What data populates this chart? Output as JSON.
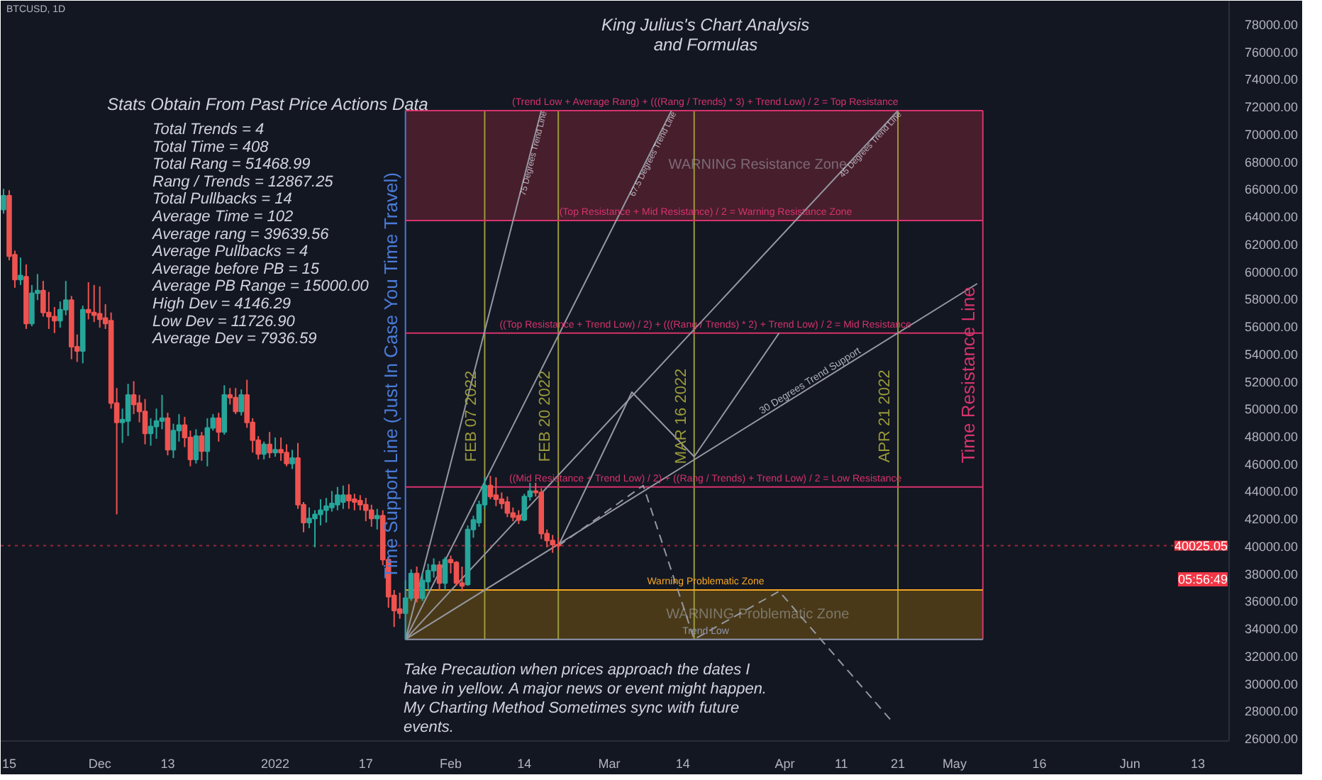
{
  "chart_data": {
    "type": "candlestick",
    "title": "King Julius's Chart Analysis\nand Formulas",
    "x": [
      "2021-11-14",
      "2021-11-15",
      "2021-11-16",
      "2021-11-17",
      "2021-11-18",
      "2021-11-19",
      "2021-11-20",
      "2021-11-21",
      "2021-11-22",
      "2021-11-23",
      "2021-11-24",
      "2021-11-25",
      "2021-11-26",
      "2021-11-27",
      "2021-11-28",
      "2021-11-29",
      "2021-11-30",
      "2021-12-01",
      "2021-12-02",
      "2021-12-03",
      "2021-12-04",
      "2021-12-05",
      "2021-12-06",
      "2021-12-07",
      "2021-12-08",
      "2021-12-09",
      "2021-12-10",
      "2021-12-11",
      "2021-12-12",
      "2021-12-13",
      "2021-12-14",
      "2021-12-15",
      "2021-12-16",
      "2021-12-17",
      "2021-12-18",
      "2021-12-19",
      "2021-12-20",
      "2021-12-21",
      "2021-12-22",
      "2021-12-23",
      "2021-12-24",
      "2021-12-25",
      "2021-12-26",
      "2021-12-27",
      "2021-12-28",
      "2021-12-29",
      "2021-12-30",
      "2021-12-31",
      "2022-01-01",
      "2022-01-02",
      "2022-01-03",
      "2022-01-04",
      "2022-01-05",
      "2022-01-06",
      "2022-01-07",
      "2022-01-08",
      "2022-01-09",
      "2022-01-10",
      "2022-01-11",
      "2022-01-12",
      "2022-01-13",
      "2022-01-14",
      "2022-01-15",
      "2022-01-16",
      "2022-01-17",
      "2022-01-18",
      "2022-01-19",
      "2022-01-20",
      "2022-01-21",
      "2022-01-22",
      "2022-01-23",
      "2022-01-24",
      "2022-01-25",
      "2022-01-26",
      "2022-01-27",
      "2022-01-28",
      "2022-01-29",
      "2022-01-30",
      "2022-01-31",
      "2022-02-01",
      "2022-02-02",
      "2022-02-03",
      "2022-02-04",
      "2022-02-05",
      "2022-02-06",
      "2022-02-07",
      "2022-02-08",
      "2022-02-09",
      "2022-02-10",
      "2022-02-11",
      "2022-02-12",
      "2022-02-13",
      "2022-02-14",
      "2022-02-15",
      "2022-02-16",
      "2022-02-17",
      "2022-02-18",
      "2022-02-19",
      "2022-02-20"
    ],
    "ohlc": [
      [
        64500,
        66000,
        64200,
        65500
      ],
      [
        65500,
        65900,
        60800,
        61100
      ],
      [
        61200,
        61500,
        58800,
        59400
      ],
      [
        59400,
        61000,
        59000,
        59700
      ],
      [
        59600,
        60500,
        55800,
        56200
      ],
      [
        56200,
        59000,
        56000,
        58400
      ],
      [
        58400,
        59800,
        57900,
        58600
      ],
      [
        58600,
        59300,
        56700,
        57000
      ],
      [
        57000,
        58500,
        55800,
        56700
      ],
      [
        56700,
        57400,
        55500,
        56400
      ],
      [
        56400,
        57800,
        55900,
        57200
      ],
      [
        57200,
        59300,
        56800,
        57900
      ],
      [
        57900,
        58200,
        53600,
        54500
      ],
      [
        54500,
        55400,
        53400,
        54200
      ],
      [
        54200,
        57500,
        53300,
        57200
      ],
      [
        57200,
        59200,
        56500,
        57000
      ],
      [
        57000,
        59000,
        56300,
        56800
      ],
      [
        56900,
        58900,
        55900,
        56500
      ],
      [
        56600,
        57600,
        55800,
        56200
      ],
      [
        56400,
        57000,
        50000,
        50400
      ],
      [
        50400,
        51500,
        42300,
        49000
      ],
      [
        49000,
        50000,
        47500,
        49200
      ],
      [
        49100,
        51800,
        48000,
        51000
      ],
      [
        51000,
        52000,
        49600,
        50300
      ],
      [
        50400,
        51000,
        49000,
        49800
      ],
      [
        49800,
        50700,
        47400,
        48200
      ],
      [
        48200,
        49300,
        47300,
        48700
      ],
      [
        48700,
        50000,
        47800,
        49100
      ],
      [
        49100,
        51000,
        48500,
        49300
      ],
      [
        49300,
        49700,
        46600,
        47000
      ],
      [
        47000,
        48900,
        46400,
        48400
      ],
      [
        48400,
        49600,
        47600,
        48800
      ],
      [
        48800,
        49400,
        47200,
        47900
      ],
      [
        47900,
        48400,
        45800,
        46300
      ],
      [
        46300,
        48500,
        46000,
        48000
      ],
      [
        48000,
        48300,
        46200,
        46900
      ],
      [
        46900,
        49300,
        45800,
        48600
      ],
      [
        48600,
        49600,
        48400,
        49300
      ],
      [
        49300,
        49700,
        47600,
        48300
      ],
      [
        48300,
        51700,
        48100,
        51000
      ],
      [
        51000,
        51500,
        50300,
        50800
      ],
      [
        50800,
        51500,
        49600,
        49800
      ],
      [
        49800,
        51400,
        49500,
        51000
      ],
      [
        51000,
        52100,
        48600,
        49000
      ],
      [
        49000,
        49300,
        46800,
        47700
      ],
      [
        47700,
        48000,
        46300,
        46700
      ],
      [
        46700,
        47600,
        46300,
        47400
      ],
      [
        47400,
        48300,
        46400,
        46800
      ],
      [
        46800,
        47900,
        46500,
        47000
      ],
      [
        47000,
        47900,
        46200,
        46800
      ],
      [
        46800,
        47400,
        45800,
        46000
      ],
      [
        46000,
        47000,
        45600,
        46400
      ],
      [
        46400,
        47500,
        42700,
        43000
      ],
      [
        43000,
        43200,
        41000,
        41700
      ],
      [
        41700,
        42800,
        41300,
        42000
      ],
      [
        42000,
        42600,
        39900,
        42300
      ],
      [
        42300,
        43400,
        41500,
        42600
      ],
      [
        42600,
        43500,
        41700,
        42900
      ],
      [
        42800,
        44000,
        42500,
        43100
      ],
      [
        43000,
        44300,
        42600,
        43700
      ],
      [
        43200,
        44400,
        42700,
        43700
      ],
      [
        43700,
        44500,
        42700,
        43300
      ],
      [
        43400,
        43800,
        42600,
        43200
      ],
      [
        43300,
        43700,
        42600,
        43000
      ],
      [
        43000,
        43500,
        41800,
        42600
      ],
      [
        42600,
        43000,
        41400,
        42000
      ],
      [
        42000,
        42700,
        41200,
        42200
      ],
      [
        42200,
        42600,
        38600,
        39000
      ],
      [
        39000,
        39200,
        35500,
        36300
      ],
      [
        36400,
        36800,
        34100,
        35300
      ],
      [
        35400,
        36600,
        34700,
        35100
      ],
      [
        35100,
        37500,
        33200,
        36200
      ],
      [
        36200,
        38300,
        36000,
        38000
      ],
      [
        38000,
        38500,
        35900,
        36200
      ],
      [
        36200,
        38000,
        36000,
        37500
      ],
      [
        37400,
        38700,
        36800,
        38200
      ],
      [
        38200,
        39100,
        37700,
        38600
      ],
      [
        38600,
        38900,
        36800,
        37300
      ],
      [
        37300,
        39200,
        36800,
        39000
      ],
      [
        39000,
        39300,
        38000,
        38800
      ],
      [
        38800,
        38900,
        37100,
        37300
      ],
      [
        37300,
        38500,
        36700,
        37100
      ],
      [
        37200,
        41500,
        37100,
        41200
      ],
      [
        41200,
        42200,
        40600,
        41900
      ],
      [
        41700,
        43300,
        41400,
        43000
      ],
      [
        43000,
        45000,
        42700,
        44400
      ],
      [
        44400,
        45100,
        43400,
        43600
      ],
      [
        43700,
        45000,
        42900,
        43400
      ],
      [
        43400,
        43900,
        42700,
        43100
      ],
      [
        43200,
        43600,
        42100,
        42400
      ],
      [
        42400,
        42800,
        41800,
        42100
      ],
      [
        42200,
        42600,
        41600,
        41900
      ],
      [
        41900,
        43800,
        41800,
        43600
      ],
      [
        43600,
        44600,
        43300,
        44000
      ],
      [
        44000,
        44600,
        43600,
        43900
      ],
      [
        43900,
        44200,
        40500,
        40900
      ],
      [
        40900,
        41200,
        39900,
        40400
      ],
      [
        40400,
        40800,
        39500,
        40100
      ],
      [
        40100,
        40600,
        39700,
        40025
      ]
    ],
    "colors": [
      "#26a69a",
      "#ef5350",
      "#ef5350",
      "#26a69a",
      "#ef5350",
      "#26a69a",
      "#26a69a",
      "#ef5350",
      "#ef5350",
      "#ef5350",
      "#26a69a",
      "#26a69a",
      "#ef5350",
      "#ef5350",
      "#26a69a",
      "#ef5350",
      "#ef5350",
      "#ef5350",
      "#ef5350",
      "#ef5350",
      "#ef5350",
      "#26a69a",
      "#26a69a",
      "#ef5350",
      "#ef5350",
      "#ef5350",
      "#26a69a",
      "#26a69a",
      "#26a69a",
      "#ef5350",
      "#26a69a",
      "#26a69a",
      "#ef5350",
      "#ef5350",
      "#26a69a",
      "#ef5350",
      "#26a69a",
      "#26a69a",
      "#ef5350",
      "#26a69a",
      "#ef5350",
      "#ef5350",
      "#26a69a",
      "#ef5350",
      "#ef5350",
      "#ef5350",
      "#26a69a",
      "#ef5350",
      "#26a69a",
      "#ef5350",
      "#ef5350",
      "#26a69a",
      "#ef5350",
      "#ef5350",
      "#26a69a",
      "#26a69a",
      "#26a69a",
      "#26a69a",
      "#26a69a",
      "#26a69a",
      "#26a69a",
      "#ef5350",
      "#ef5350",
      "#ef5350",
      "#ef5350",
      "#ef5350",
      "#26a69a",
      "#ef5350",
      "#ef5350",
      "#ef5350",
      "#ef5350",
      "#26a69a",
      "#26a69a",
      "#ef5350",
      "#26a69a",
      "#26a69a",
      "#26a69a",
      "#ef5350",
      "#26a69a",
      "#ef5350",
      "#ef5350",
      "#ef5350",
      "#26a69a",
      "#26a69a",
      "#26a69a",
      "#26a69a",
      "#ef5350",
      "#ef5350",
      "#ef5350",
      "#ef5350",
      "#ef5350",
      "#ef5350",
      "#26a69a",
      "#26a69a",
      "#ef5350",
      "#ef5350",
      "#ef5350",
      "#ef5350",
      "#ef5350"
    ],
    "series": [
      {
        "type": "line",
        "name": "75 Degrees Trend Line",
        "color": "#9598a1",
        "x": [
          "2022-01-24",
          "2022-02-17"
        ],
        "values": [
          33200,
          71700
        ]
      },
      {
        "type": "line",
        "name": "67.5 Degrees Trend Line",
        "color": "#9598a1",
        "x": [
          "2022-01-24",
          "2022-03-12"
        ],
        "values": [
          33200,
          71700
        ]
      },
      {
        "type": "line",
        "name": "45 Degrees Trend Line",
        "color": "#9598a1",
        "x": [
          "2022-01-24",
          "2022-04-21"
        ],
        "values": [
          33200,
          71700
        ]
      },
      {
        "type": "line",
        "name": "30 Degrees Trend Support",
        "color": "#9598a1",
        "x": [
          "2022-01-24",
          "2022-05-05"
        ],
        "values": [
          33200,
          59100
        ]
      },
      {
        "type": "line",
        "color": "#9598a1",
        "x": [
          "2022-02-20",
          "2022-03-05",
          "2022-03-16",
          "2022-03-31"
        ],
        "values": [
          40000,
          51200,
          46500,
          55500
        ]
      },
      {
        "type": "line",
        "color": "#9598a1",
        "line_style": "dashed",
        "x": [
          "2022-02-20",
          "2022-03-07",
          "2022-03-16",
          "2022-03-31",
          "2022-04-20"
        ],
        "values": [
          40000,
          44400,
          33200,
          36700,
          27200
        ]
      }
    ],
    "bands": [
      {
        "axis": "y",
        "from": 63700,
        "to": 71700,
        "label": "WARNING Resistance Zone",
        "color": "#5a2230"
      },
      {
        "axis": "y",
        "from": 33200,
        "to": 36800,
        "label": "WARNING Problematic Zone",
        "color": "#5c4516"
      }
    ],
    "ref_lines": [
      {
        "axis": "x",
        "value": "2022-01-24",
        "label": "Time Support Line (Just In Case You Time Travel)",
        "color": "#4a7bd6"
      },
      {
        "axis": "x",
        "value": "2022-02-07",
        "label": "FEB 07 2022",
        "color": "#9a9a3a"
      },
      {
        "axis": "x",
        "value": "2022-02-20",
        "label": "FEB 20 2022",
        "color": "#9a9a3a"
      },
      {
        "axis": "x",
        "value": "2022-03-16",
        "label": "MAR 16 2022",
        "color": "#9a9a3a"
      },
      {
        "axis": "x",
        "value": "2022-04-21",
        "label": "APR 21 2022",
        "color": "#9a9a3a"
      },
      {
        "axis": "x",
        "value": "2022-05-06",
        "label": "Time Resistance Line",
        "color": "#d6336c"
      },
      {
        "axis": "y",
        "value": 71700,
        "label": "(Trend Low + Average Rang) + (((Rang / Trends) * 3) + Trend Low) / 2 = Top Resistance",
        "color": "#d6336c"
      },
      {
        "axis": "y",
        "value": 63700,
        "label": "(Top Resistance + Mid Resistance) / 2 = Warning Resistance Zone",
        "color": "#d6336c"
      },
      {
        "axis": "y",
        "value": 55500,
        "label": "((Top Resistance + Trend Low) / 2) + (((Rang / Trends) * 2) + Trend Low) / 2 = Mid Resistance",
        "color": "#d6336c"
      },
      {
        "axis": "y",
        "value": 44300,
        "label": "((Mid Resistance + Trend Low) / 2) + ((Rang / Trends) + Trend Low) / 2 = Low Resistance",
        "color": "#d6336c"
      },
      {
        "axis": "y",
        "value": 36800,
        "label": "Warning Problematic Zone",
        "color": "#f5a623"
      },
      {
        "axis": "y",
        "value": 33200,
        "label": "Trend Low",
        "color": "#8f96b0"
      },
      {
        "axis": "y",
        "value": 40025.05,
        "label": "40025.05",
        "color": "#f23645",
        "line_style": "dotted"
      }
    ],
    "annotations": [
      "BTCUSD, 1D",
      "Stats Obtain From Past Price Actions Data",
      "Total Trends = 4",
      "Total Time = 408",
      "Total Rang = 51468.99",
      "Rang / Trends = 12867.25",
      "Total Pullbacks = 14",
      "Average Time = 102",
      "Average rang = 39639.56",
      "Average Pullbacks = 4",
      "Average before PB = 15",
      "Average PB Range = 15000.00",
      "High Dev = 4146.29",
      "Low Dev = 11726.90",
      "Average Dev = 7936.59",
      "Take Precaution when prices approach the dates I have in yellow. A major news or event might happen. My Charting Method Sometimes sync with future events.",
      "05:56:49"
    ],
    "xlim": [
      "2021-11-13T12:00",
      "2022-06-18T12:00"
    ],
    "xticks": [
      {
        "value": "2021-11-15",
        "label": "15"
      },
      {
        "value": "2021-12-01",
        "label": "Dec"
      },
      {
        "value": "2021-12-13",
        "label": "13"
      },
      {
        "value": "2022-01-01",
        "label": "2022"
      },
      {
        "value": "2022-01-17",
        "label": "17"
      },
      {
        "value": "2022-02-01",
        "label": "Feb"
      },
      {
        "value": "2022-02-14",
        "label": "14"
      },
      {
        "value": "2022-03-01",
        "label": "Mar"
      },
      {
        "value": "2022-03-14",
        "label": "14"
      },
      {
        "value": "2022-04-01",
        "label": "Apr"
      },
      {
        "value": "2022-04-11",
        "label": "11"
      },
      {
        "value": "2022-04-21",
        "label": "21"
      },
      {
        "value": "2022-05-01",
        "label": "May"
      },
      {
        "value": "2022-05-16",
        "label": "16"
      },
      {
        "value": "2022-06-01",
        "label": "Jun"
      },
      {
        "value": "2022-06-13",
        "label": "13"
      }
    ],
    "ylim": [
      25800,
      79700
    ],
    "yticks": [
      {
        "value": 26000,
        "label": "26000.00"
      },
      {
        "value": 28000,
        "label": "28000.00"
      },
      {
        "value": 30000,
        "label": "30000.00"
      },
      {
        "value": 32000,
        "label": "32000.00"
      },
      {
        "value": 34000,
        "label": "34000.00"
      },
      {
        "value": 36000,
        "label": "36000.00"
      },
      {
        "value": 38000,
        "label": "38000.00"
      },
      {
        "value": 40000,
        "label": "40000.00"
      },
      {
        "value": 42000,
        "label": "42000.00"
      },
      {
        "value": 44000,
        "label": "44000.00"
      },
      {
        "value": 46000,
        "label": "46000.00"
      },
      {
        "value": 48000,
        "label": "48000.00"
      },
      {
        "value": 50000,
        "label": "50000.00"
      },
      {
        "value": 52000,
        "label": "52000.00"
      },
      {
        "value": 54000,
        "label": "54000.00"
      },
      {
        "value": 56000,
        "label": "56000.00"
      },
      {
        "value": 58000,
        "label": "58000.00"
      },
      {
        "value": 60000,
        "label": "60000.00"
      },
      {
        "value": 62000,
        "label": "62000.00"
      },
      {
        "value": 64000,
        "label": "64000.00"
      },
      {
        "value": 66000,
        "label": "66000.00"
      },
      {
        "value": 68000,
        "label": "68000.00"
      },
      {
        "value": 70000,
        "label": "70000.00"
      },
      {
        "value": 72000,
        "label": "72000.00"
      },
      {
        "value": 74000,
        "label": "74000.00"
      },
      {
        "value": 76000,
        "label": "76000.00"
      },
      {
        "value": 78000,
        "label": "78000.00"
      }
    ]
  }
}
